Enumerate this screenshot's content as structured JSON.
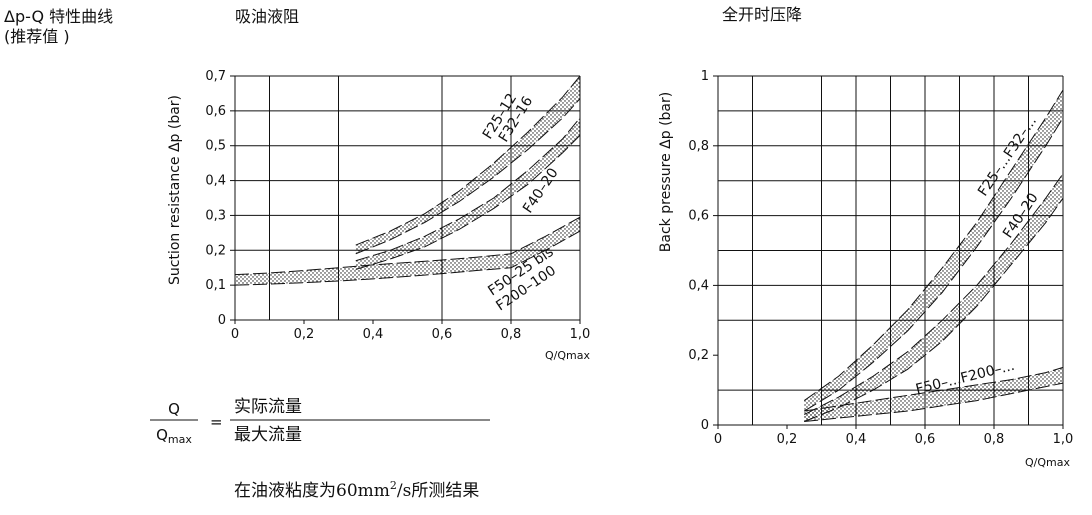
{
  "header": {
    "title_line1": "Δp-Q 特性曲线",
    "title_line2": "(推荐值 )"
  },
  "chart_data": [
    {
      "type": "area",
      "title": "吸油液阻",
      "xlabel": "Q/Qmax",
      "ylabel": "Suction resistance  Δp (bar)",
      "xlim": [
        0,
        1.0
      ],
      "ylim": [
        0,
        0.7
      ],
      "xticks": [
        "0",
        "0,2",
        "0,4",
        "0,6",
        "0,8",
        "1,0"
      ],
      "yticks": [
        "0",
        "0,1",
        "0,2",
        "0,3",
        "0,4",
        "0,5",
        "0,6",
        "0,7"
      ],
      "grid": true,
      "series": [
        {
          "name": "F25–12 / F32–16",
          "x": [
            0.35,
            0.45,
            0.55,
            0.65,
            0.75,
            0.85,
            0.95,
            1.0
          ],
          "upper": [
            0.215,
            0.255,
            0.305,
            0.37,
            0.45,
            0.54,
            0.64,
            0.7
          ],
          "lower": [
            0.19,
            0.23,
            0.28,
            0.34,
            0.41,
            0.49,
            0.58,
            0.635
          ]
        },
        {
          "name": "F40–20",
          "x": [
            0.35,
            0.45,
            0.55,
            0.65,
            0.75,
            0.85,
            0.95,
            1.0
          ],
          "upper": [
            0.17,
            0.2,
            0.24,
            0.29,
            0.35,
            0.43,
            0.52,
            0.58
          ],
          "lower": [
            0.145,
            0.175,
            0.21,
            0.26,
            0.32,
            0.39,
            0.48,
            0.53
          ]
        },
        {
          "name": "F50–25 bis F200–100",
          "x": [
            0.0,
            0.1,
            0.2,
            0.3,
            0.4,
            0.5,
            0.6,
            0.7,
            0.8,
            0.9,
            1.0
          ],
          "upper": [
            0.13,
            0.135,
            0.142,
            0.15,
            0.158,
            0.165,
            0.172,
            0.18,
            0.19,
            0.24,
            0.295
          ],
          "lower": [
            0.1,
            0.103,
            0.107,
            0.112,
            0.118,
            0.125,
            0.133,
            0.142,
            0.15,
            0.2,
            0.255
          ]
        }
      ],
      "band_labels": [
        "F25–12",
        "F32–16",
        "F40–20",
        "F50–25  bis",
        "F200–100"
      ]
    },
    {
      "type": "area",
      "title": "全开时压降",
      "xlabel": "Q/Qmax",
      "ylabel": "Back pressure  Δp (bar)",
      "xlim": [
        0,
        1.0
      ],
      "ylim": [
        0,
        1.0
      ],
      "xticks": [
        "0",
        "0,2",
        "0,4",
        "0,6",
        "0,8",
        "1,0"
      ],
      "yticks": [
        "0",
        "0,2",
        "0,4",
        "0,6",
        "0,8",
        "1"
      ],
      "grid": true,
      "series": [
        {
          "name": "F25–...F32–...",
          "x": [
            0.25,
            0.35,
            0.45,
            0.55,
            0.65,
            0.75,
            0.85,
            0.95,
            1.0
          ],
          "upper": [
            0.07,
            0.14,
            0.23,
            0.33,
            0.45,
            0.58,
            0.73,
            0.88,
            0.96
          ],
          "lower": [
            0.04,
            0.1,
            0.18,
            0.27,
            0.38,
            0.51,
            0.65,
            0.8,
            0.88
          ]
        },
        {
          "name": "F40–20",
          "x": [
            0.25,
            0.35,
            0.45,
            0.55,
            0.65,
            0.75,
            0.85,
            0.95,
            1.0
          ],
          "upper": [
            0.03,
            0.08,
            0.14,
            0.21,
            0.3,
            0.4,
            0.52,
            0.65,
            0.72
          ],
          "lower": [
            0.01,
            0.05,
            0.1,
            0.16,
            0.24,
            0.34,
            0.46,
            0.58,
            0.65
          ]
        },
        {
          "name": "F50–...F200–...",
          "x": [
            0.25,
            0.35,
            0.45,
            0.55,
            0.65,
            0.75,
            0.85,
            0.95,
            1.0
          ],
          "upper": [
            0.04,
            0.055,
            0.07,
            0.085,
            0.1,
            0.115,
            0.13,
            0.15,
            0.165
          ],
          "lower": [
            0.01,
            0.02,
            0.03,
            0.04,
            0.055,
            0.07,
            0.09,
            0.11,
            0.12
          ]
        }
      ],
      "band_labels": [
        "F25–...F32–...",
        "F40–20",
        "F50–...F200–..."
      ]
    }
  ],
  "formula": {
    "lhs_num": "Q",
    "lhs_den": "Qmax",
    "lhs_den_main": "Q",
    "lhs_den_sub": "max",
    "equals": "=",
    "rhs_num": "实际流量",
    "rhs_den": "最大流量"
  },
  "footnote": {
    "prefix": "在油液粘度为60mm",
    "superscript": "2",
    "suffix": "/s所测结果"
  }
}
